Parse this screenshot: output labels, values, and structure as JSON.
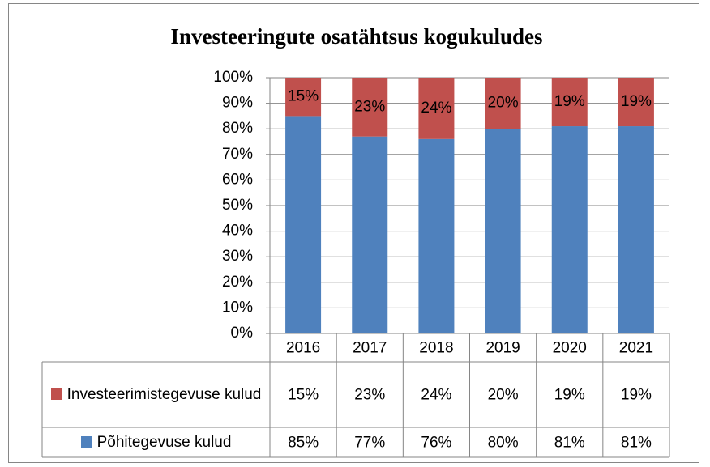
{
  "chart_data": {
    "type": "stacked_bar_100",
    "title": "Investeeringute osatähtsus kogukuludes",
    "categories": [
      "2016",
      "2017",
      "2018",
      "2019",
      "2020",
      "2021"
    ],
    "series": [
      {
        "name": "Põhitegevuse kulud",
        "color": "#4f81bd",
        "values": [
          85,
          77,
          76,
          80,
          81,
          81
        ],
        "value_labels": [
          "85%",
          "77%",
          "76%",
          "80%",
          "81%",
          "81%"
        ]
      },
      {
        "name": "Investeerimistegevuse kulud",
        "color": "#c0504d",
        "values": [
          15,
          23,
          24,
          20,
          19,
          19
        ],
        "value_labels": [
          "15%",
          "23%",
          "24%",
          "20%",
          "19%",
          "19%"
        ]
      }
    ],
    "ylim": [
      0,
      100
    ],
    "yticks": [
      {
        "value": 0,
        "label": "0%"
      },
      {
        "value": 10,
        "label": "10%"
      },
      {
        "value": 20,
        "label": "20%"
      },
      {
        "value": 30,
        "label": "30%"
      },
      {
        "value": 40,
        "label": "40%"
      },
      {
        "value": 50,
        "label": "50%"
      },
      {
        "value": 60,
        "label": "60%"
      },
      {
        "value": 70,
        "label": "70%"
      },
      {
        "value": 80,
        "label": "80%"
      },
      {
        "value": 90,
        "label": "90%"
      },
      {
        "value": 100,
        "label": "100%"
      }
    ],
    "grid": true
  }
}
